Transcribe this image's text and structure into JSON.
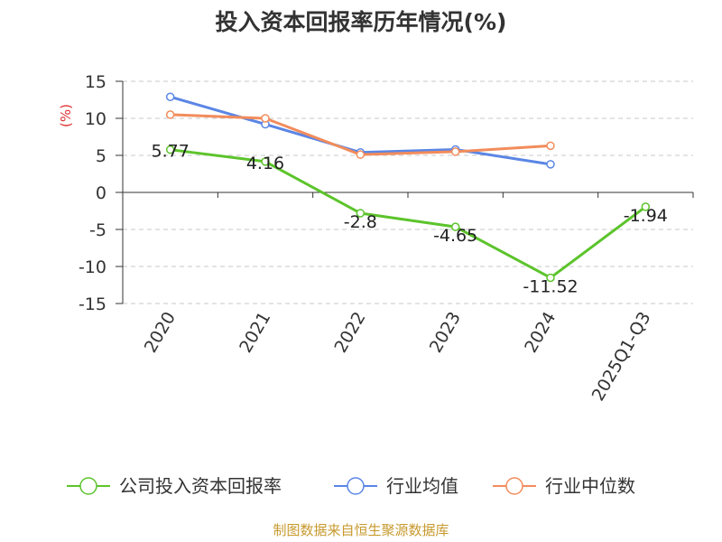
{
  "chart_data": {
    "type": "line",
    "title": "投入资本回报率历年情况(%)",
    "ylabel": "(%)",
    "categories": [
      "2020",
      "2021",
      "2022",
      "2023",
      "2024",
      "2025Q1-Q3"
    ],
    "ylim": [
      -15,
      15
    ],
    "yticks": [
      15,
      10,
      5,
      0,
      -5,
      -10,
      -15
    ],
    "grid": true,
    "legend_position": "bottom",
    "series": [
      {
        "name": "公司投入资本回报率",
        "color": "#5cc42b",
        "values": [
          5.77,
          4.16,
          -2.8,
          -4.65,
          -11.52,
          -1.94
        ],
        "labels": [
          "5.77",
          "4.16",
          "-2.8",
          "-4.65",
          "-11.52",
          "-1.94"
        ]
      },
      {
        "name": "行业均值",
        "color": "#5b86e5",
        "values": [
          12.9,
          9.2,
          5.4,
          5.8,
          3.8,
          null
        ]
      },
      {
        "name": "行业中位数",
        "color": "#f28c5c",
        "values": [
          10.5,
          10.0,
          5.1,
          5.5,
          6.3,
          null
        ]
      }
    ]
  },
  "source": {
    "text": "制图数据来自恒生聚源数据库",
    "color": "#c79a2e"
  },
  "colors": {
    "unit": "#e03030",
    "grid": "#c8c8c8",
    "axis": "#333333"
  }
}
